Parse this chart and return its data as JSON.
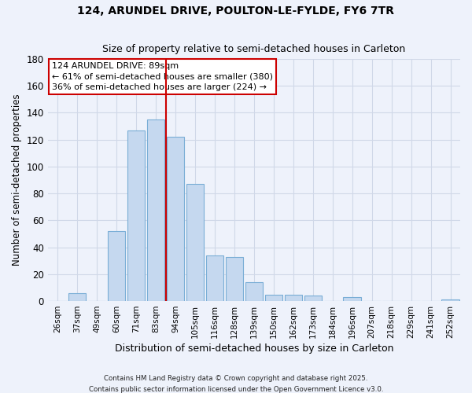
{
  "title1": "124, ARUNDEL DRIVE, POULTON-LE-FYLDE, FY6 7TR",
  "title2": "Size of property relative to semi-detached houses in Carleton",
  "xlabel": "Distribution of semi-detached houses by size in Carleton",
  "ylabel": "Number of semi-detached properties",
  "bar_labels": [
    "26sqm",
    "37sqm",
    "49sqm",
    "60sqm",
    "71sqm",
    "83sqm",
    "94sqm",
    "105sqm",
    "116sqm",
    "128sqm",
    "139sqm",
    "150sqm",
    "162sqm",
    "173sqm",
    "184sqm",
    "196sqm",
    "207sqm",
    "218sqm",
    "229sqm",
    "241sqm",
    "252sqm"
  ],
  "bar_values": [
    0,
    6,
    0,
    52,
    127,
    135,
    122,
    87,
    34,
    33,
    14,
    5,
    5,
    4,
    0,
    3,
    0,
    0,
    0,
    0,
    1
  ],
  "bar_color": "#c5d8ef",
  "bar_edge_color": "#7aaed6",
  "vline_color": "#cc0000",
  "annotation_title": "124 ARUNDEL DRIVE: 89sqm",
  "annotation_line1": "← 61% of semi-detached houses are smaller (380)",
  "annotation_line2": "36% of semi-detached houses are larger (224) →",
  "annotation_box_color": "#ffffff",
  "annotation_box_edge": "#cc0000",
  "ylim": [
    0,
    180
  ],
  "yticks": [
    0,
    20,
    40,
    60,
    80,
    100,
    120,
    140,
    160,
    180
  ],
  "footnote1": "Contains HM Land Registry data © Crown copyright and database right 2025.",
  "footnote2": "Contains public sector information licensed under the Open Government Licence v3.0.",
  "bg_color": "#eef2fb",
  "grid_color": "#d0d8e8",
  "title_fontsize": 10,
  "subtitle_fontsize": 9
}
